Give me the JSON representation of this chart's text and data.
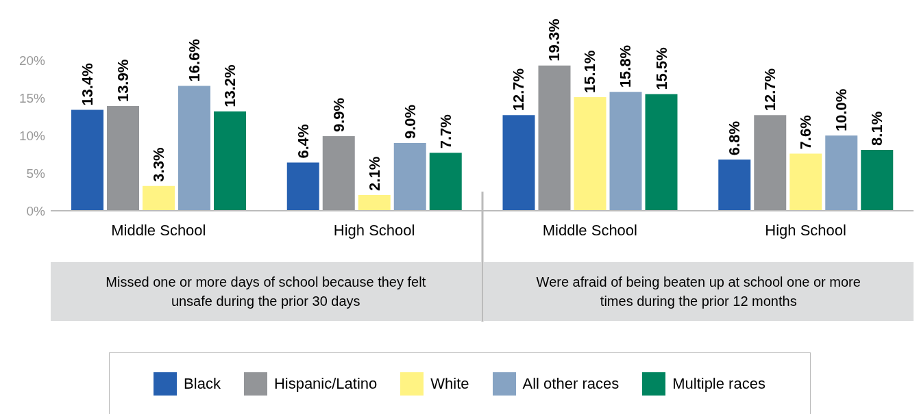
{
  "chart_data": {
    "type": "bar",
    "categories": [
      "Middle School",
      "High School",
      "Middle School",
      "High School"
    ],
    "series": [
      {
        "name": "Black",
        "color": "#2660b0",
        "values": [
          13.4,
          6.4,
          12.7,
          6.8
        ],
        "value_labels": [
          "13.4%",
          "6.4%",
          "12.7%",
          "6.8%"
        ]
      },
      {
        "name": "Hispanic/Latino",
        "color": "#939598",
        "values": [
          13.9,
          9.9,
          19.3,
          12.7
        ],
        "value_labels": [
          "13.9%",
          "9.9%",
          "19.3%",
          "12.7%"
        ]
      },
      {
        "name": "White",
        "color": "#fff383",
        "values": [
          3.3,
          2.1,
          15.1,
          7.6
        ],
        "value_labels": [
          "3.3%",
          "2.1%",
          "15.1%",
          "7.6%"
        ]
      },
      {
        "name": "All other races",
        "color": "#86a3c3",
        "values": [
          16.6,
          9.0,
          15.8,
          10.0
        ],
        "value_labels": [
          "16.6%",
          "9.0%",
          "15.8%",
          "10.0%"
        ]
      },
      {
        "name": "Multiple races",
        "color": "#00845f",
        "values": [
          13.2,
          7.7,
          15.5,
          8.1
        ],
        "value_labels": [
          "13.2%",
          "7.7%",
          "15.5%",
          "8.1%"
        ]
      }
    ],
    "ylim": [
      0,
      20
    ],
    "yticks": [
      {
        "value": 0,
        "label": "0%"
      },
      {
        "value": 5,
        "label": "5%"
      },
      {
        "value": 10,
        "label": "10%"
      },
      {
        "value": 15,
        "label": "15%"
      },
      {
        "value": 20,
        "label": "20%"
      }
    ],
    "grid": false,
    "legend": "bottom",
    "annotations": [
      "Missed one or more days of school because they felt unsafe during the prior 30 days",
      "Were afraid of being beaten up at school  one or more times during the prior 12 months"
    ]
  }
}
